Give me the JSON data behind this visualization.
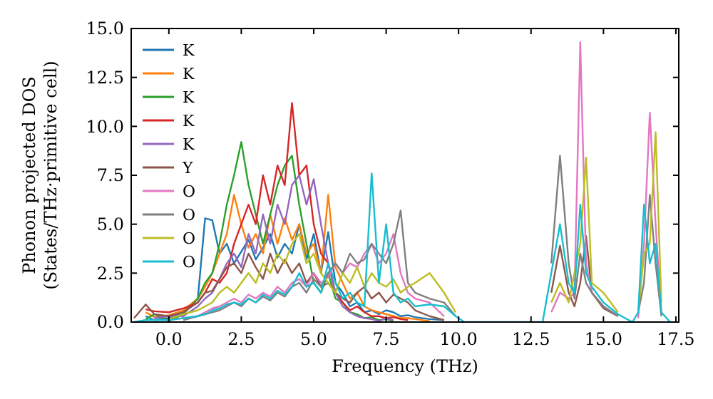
{
  "chart_data": {
    "type": "line",
    "xlabel": "Frequency (THz)",
    "ylabel": "Phonon projected DOS\n(States/THz·primitive cell)",
    "x": [
      -1.2,
      -0.8,
      -0.5,
      0,
      0.5,
      1.0,
      1.25,
      1.5,
      1.75,
      2.0,
      2.25,
      2.5,
      2.75,
      3.0,
      3.25,
      3.5,
      3.75,
      4.0,
      4.25,
      4.5,
      4.75,
      5.0,
      5.25,
      5.5,
      5.75,
      6.0,
      6.25,
      6.5,
      6.75,
      7.0,
      7.25,
      7.5,
      7.75,
      8.0,
      8.25,
      8.5,
      9.0,
      9.5,
      9.9,
      10.2,
      12.9,
      13.2,
      13.5,
      13.8,
      14.0,
      14.2,
      14.4,
      14.6,
      15.0,
      15.5,
      16.0,
      16.2,
      16.4,
      16.6,
      16.8,
      17.0,
      17.3
    ],
    "xlim": [
      -1.3,
      17.6
    ],
    "ylim": [
      0,
      15
    ],
    "xticks": [
      {
        "value": 0,
        "label": "0.0"
      },
      {
        "value": 2.5,
        "label": "2.5"
      },
      {
        "value": 5,
        "label": "5.0"
      },
      {
        "value": 7.5,
        "label": "7.5"
      },
      {
        "value": 10,
        "label": "10.0"
      },
      {
        "value": 12.5,
        "label": "12.5"
      },
      {
        "value": 15,
        "label": "15.0"
      },
      {
        "value": 17.5,
        "label": "17.5"
      }
    ],
    "yticks": [
      {
        "value": 0,
        "label": "0.0"
      },
      {
        "value": 2.5,
        "label": "2.5"
      },
      {
        "value": 5,
        "label": "5.0"
      },
      {
        "value": 7.5,
        "label": "7.5"
      },
      {
        "value": 10,
        "label": "10.0"
      },
      {
        "value": 12.5,
        "label": "12.5"
      },
      {
        "value": 15,
        "label": "15.0"
      }
    ],
    "grid": false,
    "legend": "top left",
    "marker": "none",
    "line_style": "solid",
    "series": [
      {
        "name": "K",
        "color": "#1f77b4",
        "values": [
          null,
          0.3,
          0.1,
          0.2,
          0.5,
          1.2,
          5.3,
          5.2,
          3.5,
          4.0,
          3.0,
          3.6,
          4.2,
          3.2,
          3.8,
          4.5,
          3.3,
          4.0,
          3.5,
          5.0,
          3.2,
          4.5,
          2.5,
          4.6,
          2.0,
          1.5,
          0.8,
          1.0,
          0.5,
          0.6,
          0.4,
          0.6,
          0.5,
          0.3,
          0.35,
          0.25,
          0.15,
          0.1,
          null,
          null,
          null,
          null,
          null,
          null,
          null,
          null,
          null,
          null,
          null,
          null,
          null,
          null,
          null,
          null,
          null,
          null,
          null
        ]
      },
      {
        "name": "K",
        "color": "#ff7f0e",
        "values": [
          null,
          0.5,
          0.25,
          0.35,
          0.6,
          1.2,
          1.8,
          2.5,
          3.5,
          4.5,
          6.5,
          5.0,
          3.8,
          4.5,
          3.5,
          5.5,
          4.0,
          5.3,
          4.2,
          5.0,
          3.5,
          4.0,
          2.5,
          6.5,
          2.8,
          2.0,
          1.2,
          1.5,
          0.8,
          0.6,
          0.5,
          0.4,
          0.3,
          0.2,
          0.2,
          0.15,
          0.05,
          null,
          null,
          null,
          null,
          null,
          null,
          null,
          null,
          null,
          null,
          null,
          null,
          null,
          null,
          null,
          null,
          null,
          null,
          null,
          null
        ]
      },
      {
        "name": "K",
        "color": "#2ca02c",
        "values": [
          null,
          0.15,
          0.4,
          0.05,
          0.4,
          1.2,
          2.0,
          2.5,
          4.0,
          6.0,
          7.5,
          9.2,
          7.0,
          5.5,
          4.0,
          5.5,
          7.0,
          8.0,
          8.5,
          6.0,
          4.0,
          2.0,
          1.5,
          2.5,
          1.2,
          1.0,
          0.5,
          0.4,
          0.2,
          0.25,
          0.1,
          0.15,
          0.05,
          null,
          null,
          null,
          null,
          null,
          null,
          null,
          null,
          null,
          null,
          null,
          null,
          null,
          null,
          null,
          null,
          null,
          null,
          null,
          null,
          null,
          null,
          null,
          null
        ]
      },
      {
        "name": "K",
        "color": "#d62728",
        "values": [
          null,
          0.65,
          0.55,
          0.5,
          0.7,
          1.0,
          1.5,
          2.2,
          2.0,
          2.5,
          4.0,
          5.0,
          6.0,
          5.0,
          7.5,
          6.0,
          8.0,
          7.0,
          11.2,
          7.5,
          8.0,
          5.0,
          3.5,
          3.0,
          1.5,
          1.0,
          0.6,
          0.8,
          0.5,
          0.3,
          0.3,
          0.2,
          0.25,
          0.15,
          0.1,
          null,
          null,
          null,
          null,
          null,
          null,
          null,
          null,
          null,
          null,
          null,
          null,
          null,
          null,
          null,
          null,
          null,
          null,
          null,
          null,
          null,
          null
        ]
      },
      {
        "name": "K",
        "color": "#9467bd",
        "values": [
          null,
          null,
          0.2,
          0.3,
          0.3,
          0.8,
          1.2,
          1.5,
          2.2,
          3.0,
          3.5,
          2.8,
          4.5,
          3.5,
          5.5,
          4.0,
          6.0,
          5.0,
          7.0,
          7.5,
          6.0,
          7.3,
          5.0,
          3.0,
          1.5,
          0.8,
          0.5,
          0.3,
          0.2,
          0.15,
          0.05,
          0.2,
          0.1,
          null,
          null,
          null,
          null,
          null,
          null,
          null,
          null,
          null,
          null,
          null,
          null,
          null,
          null,
          null,
          null,
          null,
          null,
          null,
          null,
          null,
          null,
          null,
          null
        ]
      },
      {
        "name": "Y",
        "color": "#8c564b",
        "values": [
          0.2,
          0.9,
          0.4,
          0.3,
          0.5,
          1.0,
          1.5,
          1.6,
          2.2,
          2.8,
          3.0,
          2.5,
          3.5,
          2.8,
          2.2,
          3.5,
          2.5,
          3.2,
          2.5,
          3.0,
          2.0,
          2.5,
          1.8,
          2.0,
          1.5,
          1.2,
          1.0,
          1.5,
          1.8,
          1.2,
          1.5,
          1.0,
          1.4,
          1.2,
          1.0,
          0.6,
          0.3,
          0.1,
          null,
          null,
          null,
          1.5,
          3.9,
          1.5,
          0.8,
          2.0,
          4.4,
          1.5,
          0.7,
          0.3,
          null,
          null,
          null,
          null,
          null,
          null,
          null
        ]
      },
      {
        "name": "O",
        "color": "#e377c2",
        "values": [
          null,
          null,
          null,
          0.1,
          0.2,
          0.3,
          0.5,
          0.7,
          0.8,
          1.0,
          1.2,
          1.0,
          1.4,
          1.2,
          1.5,
          1.3,
          1.8,
          1.5,
          2.0,
          2.2,
          1.8,
          2.5,
          2.0,
          2.3,
          3.0,
          2.5,
          3.0,
          2.8,
          3.5,
          4.0,
          3.0,
          3.5,
          4.5,
          2.5,
          1.5,
          1.2,
          1.0,
          0.3,
          null,
          null,
          null,
          0.5,
          1.5,
          1.2,
          1.5,
          14.3,
          3.0,
          1.5,
          0.8,
          0.3,
          null,
          0.2,
          4.0,
          10.7,
          5.0,
          0.5,
          null
        ]
      },
      {
        "name": "O",
        "color": "#7f7f7f",
        "values": [
          null,
          null,
          null,
          null,
          0.1,
          0.3,
          0.4,
          0.5,
          0.6,
          0.8,
          1.0,
          0.8,
          1.2,
          1.0,
          1.3,
          1.1,
          1.5,
          1.3,
          1.8,
          2.0,
          1.5,
          2.2,
          1.8,
          2.5,
          3.0,
          2.5,
          3.5,
          3.0,
          3.2,
          4.0,
          3.5,
          3.0,
          4.0,
          5.7,
          2.0,
          1.5,
          1.2,
          1.0,
          0.3,
          null,
          null,
          3.0,
          8.5,
          3.0,
          1.2,
          3.5,
          2.0,
          1.5,
          0.8,
          0.3,
          null,
          0.5,
          2.0,
          6.5,
          3.0,
          0.3,
          null
        ]
      },
      {
        "name": "O",
        "color": "#bcbd22",
        "values": [
          null,
          null,
          null,
          0.15,
          0.4,
          0.6,
          0.8,
          1.0,
          1.5,
          1.8,
          1.5,
          2.0,
          2.5,
          2.0,
          3.0,
          2.5,
          3.5,
          3.0,
          4.0,
          4.5,
          3.0,
          3.5,
          2.5,
          2.0,
          1.5,
          2.5,
          2.0,
          2.8,
          1.8,
          2.5,
          2.0,
          1.8,
          2.2,
          1.5,
          1.8,
          2.0,
          2.5,
          1.5,
          0.5,
          null,
          null,
          1.0,
          2.0,
          1.0,
          2.5,
          4.0,
          8.4,
          2.0,
          1.5,
          0.5,
          null,
          0.5,
          3.5,
          4.0,
          9.7,
          1.0,
          null
        ]
      },
      {
        "name": "O",
        "color": "#17becf",
        "values": [
          0,
          0.1,
          0.1,
          0.1,
          0.2,
          0.3,
          0.4,
          0.6,
          0.7,
          0.9,
          1.0,
          0.9,
          1.2,
          1.0,
          1.4,
          1.2,
          1.6,
          1.4,
          1.8,
          2.5,
          1.8,
          2.0,
          1.5,
          3.0,
          2.0,
          1.2,
          1.5,
          1.0,
          0.8,
          7.6,
          2.0,
          5.0,
          1.5,
          1.0,
          1.2,
          0.8,
          0.9,
          0.8,
          0.3,
          0,
          0,
          2.5,
          5.0,
          2.0,
          1.5,
          6.0,
          2.5,
          1.8,
          1.0,
          0.4,
          0,
          0.5,
          6.0,
          3.0,
          4.0,
          0.5,
          0
        ]
      }
    ]
  }
}
